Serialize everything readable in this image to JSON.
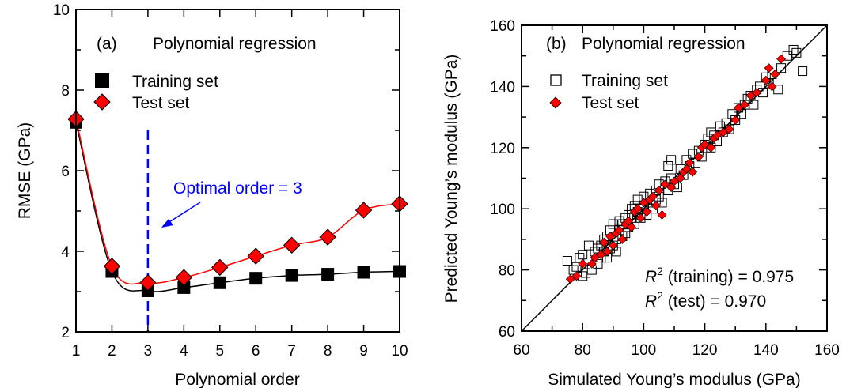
{
  "colors": {
    "training": "#000000",
    "test": "#ff0000",
    "optimal_line": "#0000ff",
    "optimal_text": "#0000ff"
  },
  "chart_data": [
    {
      "type": "line",
      "panel_label": "(a)",
      "title": "Polynomial regression",
      "xlabel": "Polynomial order",
      "ylabel": "RMSE (GPa)",
      "xlim": [
        1,
        10
      ],
      "ylim": [
        2,
        10
      ],
      "x_ticks": [
        1,
        2,
        3,
        4,
        5,
        6,
        7,
        8,
        9,
        10
      ],
      "y_ticks": [
        2,
        4,
        6,
        8,
        10
      ],
      "x": [
        1,
        2,
        3,
        4,
        5,
        6,
        7,
        8,
        9,
        10
      ],
      "series": [
        {
          "name": "Training set",
          "marker": "filled-square",
          "values": [
            7.2,
            3.5,
            3.02,
            3.1,
            3.22,
            3.33,
            3.4,
            3.43,
            3.48,
            3.5
          ]
        },
        {
          "name": "Test set",
          "marker": "filled-diamond",
          "values": [
            7.28,
            3.63,
            3.22,
            3.35,
            3.6,
            3.88,
            4.15,
            4.35,
            5.02,
            5.18
          ]
        }
      ],
      "annotation": {
        "text": "Optimal order = 3",
        "x": 3
      },
      "legend_position": "top-left"
    },
    {
      "type": "scatter",
      "panel_label": "(b)",
      "title": "Polynomial regression",
      "xlabel": "Simulated Young’s modulus (GPa)",
      "ylabel": "Predicted Young’s modulus (GPa)",
      "xlim": [
        60,
        160
      ],
      "ylim": [
        60,
        160
      ],
      "x_ticks": [
        60,
        80,
        100,
        120,
        140,
        160
      ],
      "y_ticks": [
        60,
        80,
        100,
        120,
        140,
        160
      ],
      "reference_line": "y = x",
      "series": [
        {
          "name": "Training set",
          "marker": "open-square",
          "points": [
            [
              75,
              83
            ],
            [
              77,
              80
            ],
            [
              78,
              81
            ],
            [
              79,
              84
            ],
            [
              80,
              85
            ],
            [
              80,
              78
            ],
            [
              81,
              79
            ],
            [
              82,
              88
            ],
            [
              83,
              80
            ],
            [
              84,
              86
            ],
            [
              85,
              82
            ],
            [
              85,
              87
            ],
            [
              86,
              88
            ],
            [
              86,
              84
            ],
            [
              87,
              90
            ],
            [
              87,
              86
            ],
            [
              88,
              84
            ],
            [
              88,
              91
            ],
            [
              89,
              87
            ],
            [
              89,
              93
            ],
            [
              90,
              88
            ],
            [
              90,
              95
            ],
            [
              91,
              90
            ],
            [
              91,
              86
            ],
            [
              92,
              93
            ],
            [
              92,
              96
            ],
            [
              93,
              91
            ],
            [
              93,
              95
            ],
            [
              94,
              97
            ],
            [
              94,
              92
            ],
            [
              95,
              98
            ],
            [
              95,
              94
            ],
            [
              96,
              100
            ],
            [
              96,
              97
            ],
            [
              97,
              95
            ],
            [
              97,
              101
            ],
            [
              98,
              99
            ],
            [
              98,
              103
            ],
            [
              99,
              97
            ],
            [
              99,
              100
            ],
            [
              100,
              104
            ],
            [
              100,
              101
            ],
            [
              101,
              98
            ],
            [
              102,
              105
            ],
            [
              102,
              102
            ],
            [
              103,
              100
            ],
            [
              104,
              106
            ],
            [
              104,
              103
            ],
            [
              105,
              108
            ],
            [
              105,
              104
            ],
            [
              106,
              102
            ],
            [
              107,
              109
            ],
            [
              108,
              114
            ],
            [
              108,
              106
            ],
            [
              109,
              116
            ],
            [
              109,
              110
            ],
            [
              110,
              108
            ],
            [
              111,
              107
            ],
            [
              112,
              113
            ],
            [
              113,
              111
            ],
            [
              114,
              116
            ],
            [
              115,
              114
            ],
            [
              116,
              118
            ],
            [
              117,
              115
            ],
            [
              118,
              119
            ],
            [
              119,
              117
            ],
            [
              120,
              121
            ],
            [
              121,
              123
            ],
            [
              122,
              120
            ],
            [
              122,
              125
            ],
            [
              123,
              124
            ],
            [
              124,
              122
            ],
            [
              125,
              127
            ],
            [
              126,
              125
            ],
            [
              127,
              128
            ],
            [
              128,
              126
            ],
            [
              129,
              131
            ],
            [
              130,
              129
            ],
            [
              131,
              133
            ],
            [
              132,
              131
            ],
            [
              133,
              134
            ],
            [
              134,
              136
            ],
            [
              135,
              137
            ],
            [
              136,
              134
            ],
            [
              137,
              139
            ],
            [
              138,
              140
            ],
            [
              139,
              138
            ],
            [
              140,
              143
            ],
            [
              141,
              141
            ],
            [
              142,
              144
            ],
            [
              144,
              139
            ],
            [
              145,
              146
            ],
            [
              147,
              150
            ],
            [
              149,
              152
            ],
            [
              150,
              151
            ],
            [
              152,
              145
            ]
          ]
        },
        {
          "name": "Test set",
          "marker": "filled-diamond",
          "points": [
            [
              76,
              77
            ],
            [
              78,
              78
            ],
            [
              80,
              82
            ],
            [
              83,
              82
            ],
            [
              84,
              84
            ],
            [
              86,
              85
            ],
            [
              87,
              89
            ],
            [
              88,
              86
            ],
            [
              89,
              91
            ],
            [
              90,
              88
            ],
            [
              91,
              92
            ],
            [
              92,
              93
            ],
            [
              93,
              90
            ],
            [
              94,
              95
            ],
            [
              95,
              96
            ],
            [
              96,
              94
            ],
            [
              97,
              99
            ],
            [
              98,
              100
            ],
            [
              99,
              97
            ],
            [
              100,
              102
            ],
            [
              101,
              99
            ],
            [
              102,
              103
            ],
            [
              103,
              104
            ],
            [
              104,
              101
            ],
            [
              105,
              106
            ],
            [
              106,
              98
            ],
            [
              107,
              108
            ],
            [
              109,
              107
            ],
            [
              110,
              109
            ],
            [
              112,
              110
            ],
            [
              113,
              112
            ],
            [
              114,
              113
            ],
            [
              115,
              115
            ],
            [
              116,
              112
            ],
            [
              118,
              117
            ],
            [
              119,
              120
            ],
            [
              120,
              121
            ],
            [
              122,
              120
            ],
            [
              123,
              123
            ],
            [
              124,
              124
            ],
            [
              126,
              125
            ],
            [
              128,
              126
            ],
            [
              130,
              129
            ],
            [
              131,
              133
            ],
            [
              133,
              134
            ],
            [
              135,
              137
            ],
            [
              137,
              138
            ],
            [
              140,
              142
            ],
            [
              141,
              146
            ],
            [
              142,
              140
            ],
            [
              143,
              144
            ],
            [
              145,
              149
            ]
          ]
        }
      ],
      "annotations": [
        {
          "text": "R",
          "sup": "2",
          "rest": " (training) = 0.975"
        },
        {
          "text": "R",
          "sup": "2",
          "rest": " (test) = 0.970"
        }
      ],
      "legend_position": "top-left"
    }
  ]
}
